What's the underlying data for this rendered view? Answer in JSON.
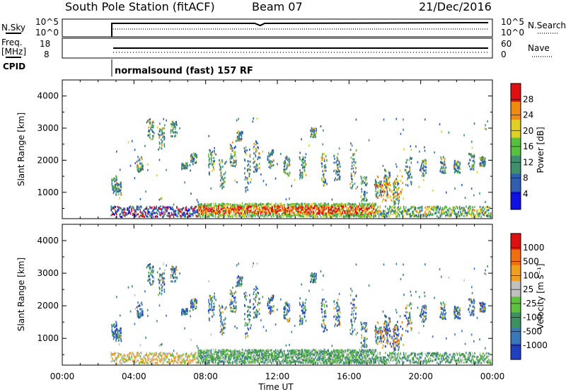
{
  "header": {
    "station": "South Pole Station (fitACF)",
    "beam": "Beam 07",
    "date": "21/Dec/2016"
  },
  "strip_labels": {
    "nsky": "N.Sky",
    "nsky_ticks": [
      "10^5",
      "10^0"
    ],
    "nsearch": "N.Search",
    "nsearch_ticks": [
      "10^5",
      "10^0"
    ],
    "freq_line1": "Freq.",
    "freq_line2": "[MHz]",
    "freq_ticks": [
      "18",
      "8"
    ],
    "nave": "Nave",
    "nave_ticks": [
      "60",
      "0"
    ],
    "cpid": "CPID",
    "cpid_text": "normalsound (fast) 157 RF"
  },
  "chart_data": [
    {
      "type": "heatmap",
      "name": "power",
      "ylabel": "Slant Range [km]",
      "xlabel": "",
      "y_ticks": [
        "1000",
        "2000",
        "3000",
        "4000"
      ],
      "ylim": [
        180,
        4500
      ],
      "colorbar_label": "Power [dB]",
      "colorbar_ticks": [
        "28",
        "24",
        "20",
        "16",
        "12",
        "8",
        "4"
      ],
      "colors": [
        "#1010e0",
        "#2f5fae",
        "#3f8f6f",
        "#58c040",
        "#e0d020",
        "#f08a10",
        "#e01010"
      ]
    },
    {
      "type": "heatmap",
      "name": "velocity",
      "ylabel": "Slant Range [km]",
      "xlabel": "Time UT",
      "x_ticks": [
        "00:00",
        "04:00",
        "08:00",
        "12:00",
        "16:00",
        "20:00",
        "00:00"
      ],
      "y_ticks": [
        "1000",
        "2000",
        "3000",
        "4000"
      ],
      "ylim": [
        180,
        4500
      ],
      "colorbar_label": "Velocity [m s⁻¹]",
      "colorbar_ticks": [
        "1000",
        "500",
        "100",
        "25",
        "-25",
        "-100",
        "-500",
        "-1000"
      ],
      "colors": [
        "#2040c0",
        "#3a78b8",
        "#3f9060",
        "#60c040",
        "#c0c0c0",
        "#f0a020",
        "#f07010",
        "#e01010"
      ]
    }
  ]
}
